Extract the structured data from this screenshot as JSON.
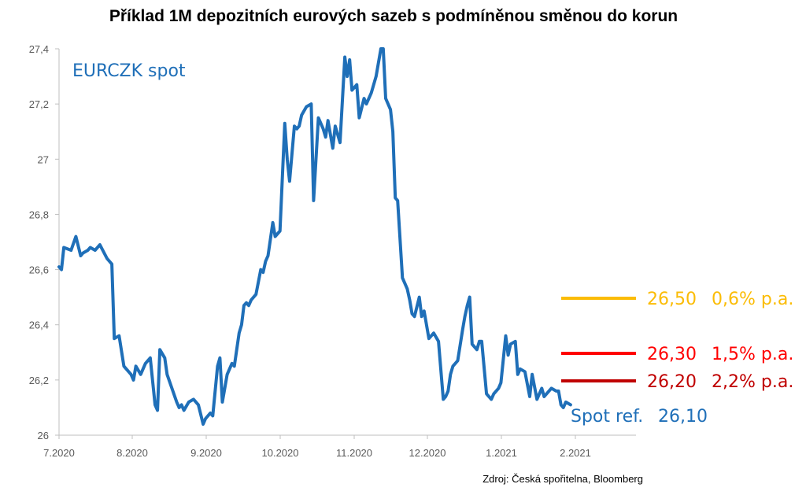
{
  "chart_data": {
    "type": "line",
    "title": "Příklad 1M depozitních eurových sazeb s podmíněnou směnou do korun",
    "xlabel": "",
    "ylabel": "",
    "ylim": [
      26,
      27.4
    ],
    "y_ticks": [
      "26",
      "26,2",
      "26,4",
      "26,6",
      "26,8",
      "27",
      "27,2",
      "27,4"
    ],
    "x_ticks": [
      "7.2020",
      "8.2020",
      "9.2020",
      "10.2020",
      "11.2020",
      "12.2020",
      "1.2021",
      "2.2021"
    ],
    "grid": false,
    "source": "Zdroj: Česká spořitelna, Bloomberg",
    "series": [
      {
        "name": "EURCZK spot",
        "color": "#1f6fb8",
        "x": [
          "2020-07-01",
          "2020-07-02",
          "2020-07-03",
          "2020-07-06",
          "2020-07-08",
          "2020-07-10",
          "2020-07-11",
          "2020-07-13",
          "2020-07-14",
          "2020-07-16",
          "2020-07-18",
          "2020-07-21",
          "2020-07-23",
          "2020-07-24",
          "2020-07-26",
          "2020-07-28",
          "2020-07-29",
          "2020-07-31",
          "2020-08-01",
          "2020-08-02",
          "2020-08-04",
          "2020-08-06",
          "2020-08-08",
          "2020-08-10",
          "2020-08-11",
          "2020-08-12",
          "2020-08-14",
          "2020-08-15",
          "2020-08-17",
          "2020-08-19",
          "2020-08-20",
          "2020-08-21",
          "2020-08-22",
          "2020-08-24",
          "2020-08-26",
          "2020-08-28",
          "2020-08-30",
          "2020-08-31",
          "2020-09-02",
          "2020-09-03",
          "2020-09-05",
          "2020-09-06",
          "2020-09-07",
          "2020-09-09",
          "2020-09-11",
          "2020-09-12",
          "2020-09-14",
          "2020-09-15",
          "2020-09-16",
          "2020-09-17",
          "2020-09-18",
          "2020-09-19",
          "2020-09-21",
          "2020-09-23",
          "2020-09-24",
          "2020-09-25",
          "2020-09-26",
          "2020-09-28",
          "2020-09-29",
          "2020-10-01",
          "2020-10-03",
          "2020-10-04",
          "2020-10-05",
          "2020-10-07",
          "2020-10-08",
          "2020-10-09",
          "2020-10-10",
          "2020-10-12",
          "2020-10-14",
          "2020-10-15",
          "2020-10-17",
          "2020-10-19",
          "2020-10-20",
          "2020-10-21",
          "2020-10-23",
          "2020-10-24",
          "2020-10-26",
          "2020-10-28",
          "2020-10-29",
          "2020-10-30",
          "2020-10-31",
          "2020-11-01",
          "2020-11-02",
          "2020-11-03",
          "2020-11-05",
          "2020-11-06",
          "2020-11-08",
          "2020-11-10",
          "2020-11-12",
          "2020-11-13",
          "2020-11-14",
          "2020-11-16",
          "2020-11-17",
          "2020-11-18",
          "2020-11-19",
          "2020-11-21",
          "2020-11-23",
          "2020-11-24",
          "2020-11-25",
          "2020-11-26",
          "2020-11-28",
          "2020-11-29",
          "2020-11-30",
          "2020-12-02",
          "2020-12-04",
          "2020-12-06",
          "2020-12-08",
          "2020-12-09",
          "2020-12-10",
          "2020-12-11",
          "2020-12-12",
          "2020-12-14",
          "2020-12-16",
          "2020-12-17",
          "2020-12-18",
          "2020-12-19",
          "2020-12-20",
          "2020-12-22",
          "2020-12-23",
          "2020-12-24",
          "2020-12-26",
          "2020-12-28",
          "2020-12-29",
          "2020-12-31",
          "2021-01-01",
          "2021-01-03",
          "2021-01-04",
          "2021-01-05",
          "2021-01-07",
          "2021-01-08",
          "2021-01-09",
          "2021-01-11",
          "2021-01-13",
          "2021-01-14",
          "2021-01-16",
          "2021-01-18",
          "2021-01-19",
          "2021-01-20",
          "2021-01-22",
          "2021-01-24",
          "2021-01-25",
          "2021-01-26",
          "2021-01-27",
          "2021-01-28",
          "2021-01-30"
        ],
        "y": [
          26.61,
          26.6,
          26.68,
          26.67,
          26.72,
          26.65,
          26.66,
          26.67,
          26.68,
          26.67,
          26.69,
          26.64,
          26.62,
          26.35,
          26.36,
          26.25,
          26.24,
          26.22,
          26.2,
          26.25,
          26.22,
          26.26,
          26.28,
          26.11,
          26.09,
          26.31,
          26.28,
          26.22,
          26.17,
          26.12,
          26.1,
          26.11,
          26.09,
          26.12,
          26.13,
          26.11,
          26.04,
          26.06,
          26.08,
          26.07,
          26.25,
          26.28,
          26.12,
          26.22,
          26.26,
          26.25,
          26.37,
          26.4,
          26.47,
          26.48,
          26.47,
          26.49,
          26.51,
          26.6,
          26.59,
          26.63,
          26.65,
          26.77,
          26.72,
          26.74,
          27.13,
          27.0,
          26.92,
          27.12,
          27.11,
          27.12,
          27.16,
          27.19,
          27.2,
          26.85,
          27.15,
          27.11,
          27.08,
          27.14,
          27.04,
          27.12,
          27.06,
          27.37,
          27.3,
          27.36,
          27.25,
          27.26,
          27.27,
          27.15,
          27.22,
          27.2,
          27.24,
          27.3,
          27.4,
          27.4,
          27.22,
          27.18,
          27.1,
          26.86,
          26.85,
          26.57,
          26.53,
          26.49,
          26.44,
          26.43,
          26.5,
          26.43,
          26.45,
          26.35,
          26.37,
          26.34,
          26.13,
          26.14,
          26.16,
          26.22,
          26.25,
          26.27,
          26.38,
          26.43,
          26.47,
          26.5,
          26.33,
          26.31,
          26.34,
          26.34,
          26.15,
          26.13,
          26.15,
          26.17,
          26.19,
          26.36,
          26.29,
          26.33,
          26.34,
          26.22,
          26.24,
          26.23,
          26.14,
          26.22,
          26.13,
          26.17,
          26.14,
          26.15,
          26.17,
          26.16,
          26.16,
          26.11,
          26.1,
          26.12,
          26.11
        ]
      }
    ],
    "annotations": {
      "series_label": "EURCZK spot",
      "levels": [
        {
          "value": 26.5,
          "rate_label": "26,50",
          "pa_label": "0,6% p.a.",
          "color": "#fbbc05"
        },
        {
          "value": 26.3,
          "rate_label": "26,30",
          "pa_label": "1,5% p.a.",
          "color": "#ff0000"
        },
        {
          "value": 26.2,
          "rate_label": "26,20",
          "pa_label": "2,2% p.a.",
          "color": "#c00000"
        }
      ],
      "spot_ref": {
        "label": "Spot ref.",
        "value_label": "26,10",
        "color": "#1f6fb8"
      }
    }
  }
}
